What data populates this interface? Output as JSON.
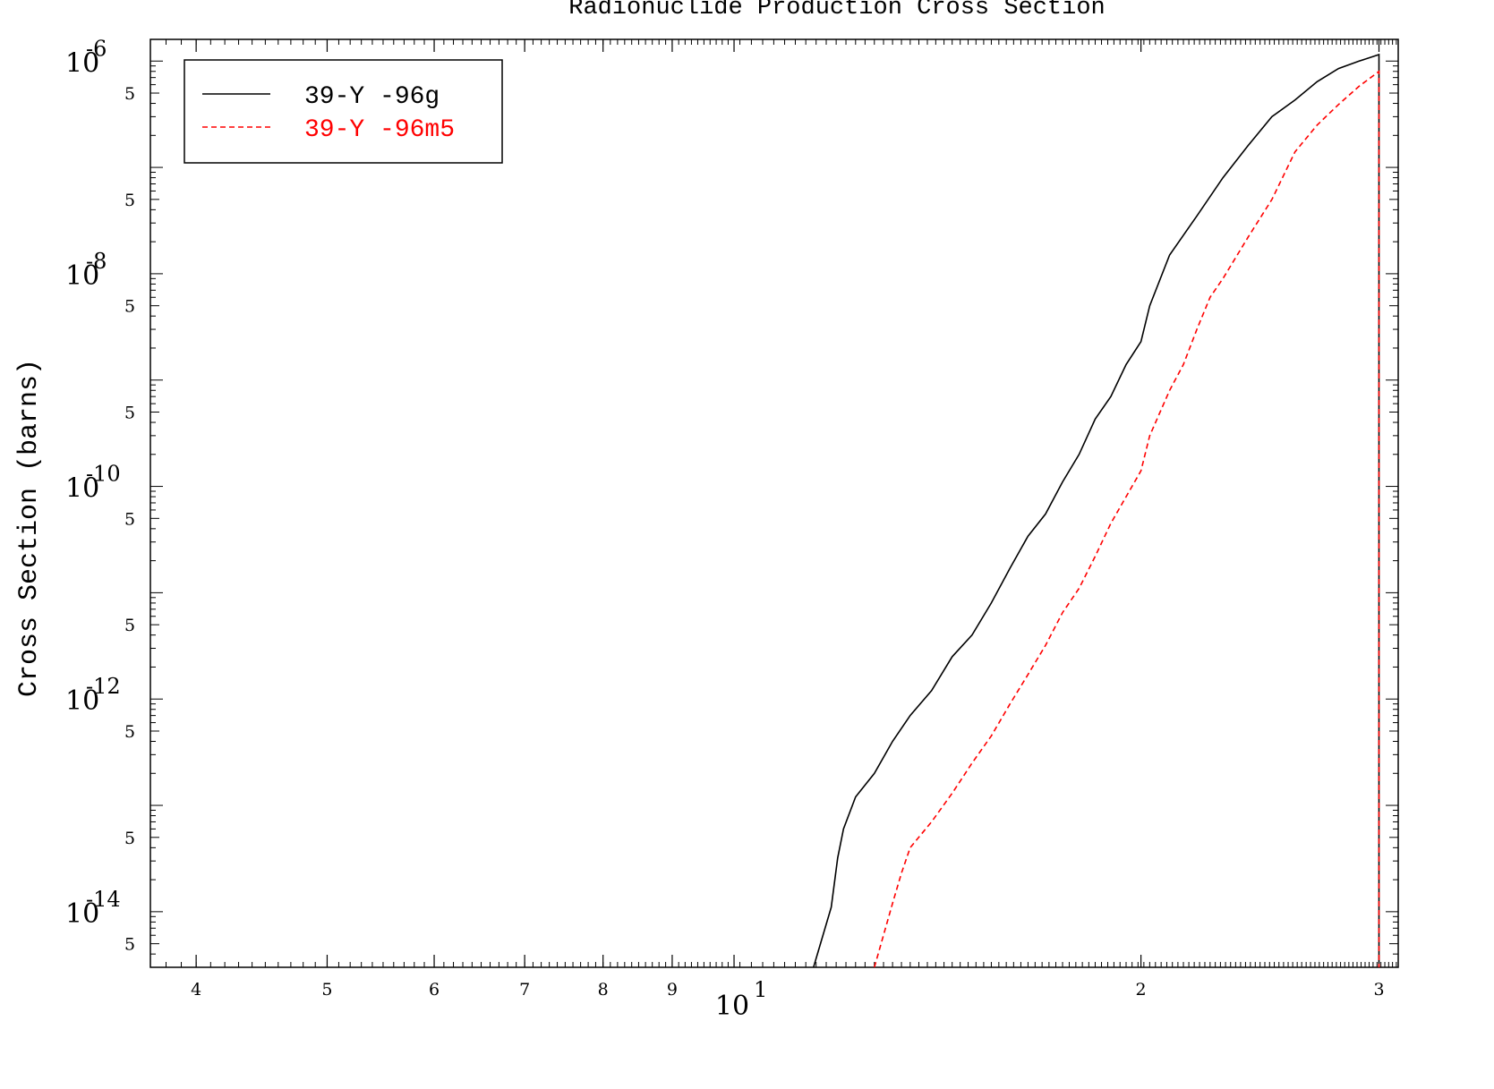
{
  "chart_data": {
    "type": "line",
    "title": "Radionuclide Production Cross Section",
    "ylabel": "Cross Section (barns)",
    "xlabel": "",
    "x_scale": "log",
    "y_scale": "log",
    "xlim": [
      3.7,
      31.0
    ],
    "ylim": [
      3e-15,
      1.6e-06
    ],
    "x_major_ticks": [
      {
        "value": 4,
        "label": "4"
      },
      {
        "value": 5,
        "label": "5"
      },
      {
        "value": 6,
        "label": "6"
      },
      {
        "value": 7,
        "label": "7"
      },
      {
        "value": 8,
        "label": "8"
      },
      {
        "value": 9,
        "label": "9"
      },
      {
        "value": 10,
        "label": "10",
        "exp": "1"
      },
      {
        "value": 20,
        "label": "2"
      },
      {
        "value": 30,
        "label": "3"
      }
    ],
    "y_decade_ticks": [
      {
        "value": 1e-06,
        "base": "10",
        "exp": "-6"
      },
      {
        "value": 1e-08,
        "base": "10",
        "exp": "-8"
      },
      {
        "value": 1e-10,
        "base": "10",
        "exp": "-10"
      },
      {
        "value": 1e-12,
        "base": "10",
        "exp": "-12"
      },
      {
        "value": 1e-14,
        "base": "10",
        "exp": "-14"
      }
    ],
    "y_five_ticks": [
      {
        "value": 5e-07,
        "label": "5"
      },
      {
        "value": 5e-08,
        "label": "5"
      },
      {
        "value": 5e-09,
        "label": "5"
      },
      {
        "value": 5e-10,
        "label": "5"
      },
      {
        "value": 5e-11,
        "label": "5"
      },
      {
        "value": 5e-12,
        "label": "5"
      },
      {
        "value": 5e-13,
        "label": "5"
      },
      {
        "value": 5e-14,
        "label": "5"
      },
      {
        "value": 5e-15,
        "label": "5"
      }
    ],
    "grid": false,
    "legend_position": "top-left",
    "series": [
      {
        "name": "39-Y -96g",
        "color": "#000000",
        "dash": "solid",
        "x": [
          11.45,
          11.8,
          11.93,
          12.05,
          12.3,
          12.7,
          13.1,
          13.5,
          14.0,
          14.5,
          15.0,
          15.5,
          16.0,
          16.5,
          17.0,
          17.5,
          18.0,
          18.5,
          19.0,
          19.5,
          20.0,
          20.3,
          21.0,
          21.5,
          22.0,
          23.0,
          24.0,
          25.0,
          26.0,
          27.0,
          28.0,
          29.0,
          30.0,
          30.0
        ],
        "y": [
          3e-15,
          1.1e-14,
          3.2e-14,
          6e-14,
          1.2e-13,
          2e-13,
          4e-13,
          7e-13,
          1.2e-12,
          2.5e-12,
          4e-12,
          8e-12,
          1.7e-11,
          3.4e-11,
          5.5e-11,
          1.1e-10,
          2e-10,
          4.3e-10,
          7e-10,
          1.4e-09,
          2.3e-09,
          5e-09,
          1.5e-08,
          2.3e-08,
          3.5e-08,
          8e-08,
          1.6e-07,
          3e-07,
          4.3e-07,
          6.4e-07,
          8.5e-07,
          1e-06,
          1.15e-06,
          3e-15
        ]
      },
      {
        "name": "39-Y -96m5",
        "color": "#ff0000",
        "dash": "dashed",
        "x": [
          12.7,
          13.1,
          13.3,
          13.5,
          14.0,
          14.5,
          15.0,
          15.5,
          16.0,
          16.5,
          17.0,
          17.5,
          18.0,
          18.5,
          19.0,
          19.5,
          20.0,
          20.3,
          21.0,
          21.5,
          22.0,
          22.5,
          23.0,
          24.0,
          25.0,
          26.0,
          27.0,
          28.0,
          29.0,
          30.0,
          30.0
        ],
        "y": [
          3e-15,
          1.2e-14,
          2.3e-14,
          4e-14,
          7e-14,
          1.3e-13,
          2.5e-13,
          4.5e-13,
          9e-13,
          1.7e-12,
          3.2e-12,
          6.5e-12,
          1.1e-11,
          2.2e-11,
          4.5e-11,
          8e-11,
          1.4e-10,
          3e-10,
          8e-10,
          1.4e-09,
          3e-09,
          6e-09,
          9e-09,
          2.2e-08,
          5e-08,
          1.4e-07,
          2.5e-07,
          3.9e-07,
          5.8e-07,
          8e-07,
          3e-15
        ]
      }
    ]
  }
}
